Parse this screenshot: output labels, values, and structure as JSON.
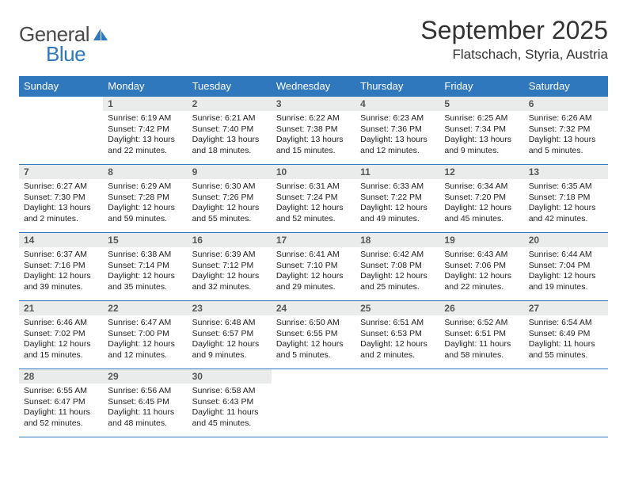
{
  "logo": {
    "word1": "General",
    "word2": "Blue"
  },
  "header": {
    "month_title": "September 2025",
    "location": "Flatschach, Styria, Austria"
  },
  "columns": [
    "Sunday",
    "Monday",
    "Tuesday",
    "Wednesday",
    "Thursday",
    "Friday",
    "Saturday"
  ],
  "colors": {
    "header_bg": "#2f78bd",
    "header_text": "#ffffff",
    "daynum_bg": "#e9eceb",
    "daynum_text": "#565656",
    "rule": "#2f78bd",
    "body_text": "#222222",
    "page_bg": "#ffffff",
    "logo_gray": "#4a4a4a",
    "logo_blue": "#2f78bd"
  },
  "rows": [
    [
      {
        "empty": true
      },
      {
        "num": "1",
        "sunrise": "Sunrise: 6:19 AM",
        "sunset": "Sunset: 7:42 PM",
        "daylight": "Daylight: 13 hours and 22 minutes."
      },
      {
        "num": "2",
        "sunrise": "Sunrise: 6:21 AM",
        "sunset": "Sunset: 7:40 PM",
        "daylight": "Daylight: 13 hours and 18 minutes."
      },
      {
        "num": "3",
        "sunrise": "Sunrise: 6:22 AM",
        "sunset": "Sunset: 7:38 PM",
        "daylight": "Daylight: 13 hours and 15 minutes."
      },
      {
        "num": "4",
        "sunrise": "Sunrise: 6:23 AM",
        "sunset": "Sunset: 7:36 PM",
        "daylight": "Daylight: 13 hours and 12 minutes."
      },
      {
        "num": "5",
        "sunrise": "Sunrise: 6:25 AM",
        "sunset": "Sunset: 7:34 PM",
        "daylight": "Daylight: 13 hours and 9 minutes."
      },
      {
        "num": "6",
        "sunrise": "Sunrise: 6:26 AM",
        "sunset": "Sunset: 7:32 PM",
        "daylight": "Daylight: 13 hours and 5 minutes."
      }
    ],
    [
      {
        "num": "7",
        "sunrise": "Sunrise: 6:27 AM",
        "sunset": "Sunset: 7:30 PM",
        "daylight": "Daylight: 13 hours and 2 minutes."
      },
      {
        "num": "8",
        "sunrise": "Sunrise: 6:29 AM",
        "sunset": "Sunset: 7:28 PM",
        "daylight": "Daylight: 12 hours and 59 minutes."
      },
      {
        "num": "9",
        "sunrise": "Sunrise: 6:30 AM",
        "sunset": "Sunset: 7:26 PM",
        "daylight": "Daylight: 12 hours and 55 minutes."
      },
      {
        "num": "10",
        "sunrise": "Sunrise: 6:31 AM",
        "sunset": "Sunset: 7:24 PM",
        "daylight": "Daylight: 12 hours and 52 minutes."
      },
      {
        "num": "11",
        "sunrise": "Sunrise: 6:33 AM",
        "sunset": "Sunset: 7:22 PM",
        "daylight": "Daylight: 12 hours and 49 minutes."
      },
      {
        "num": "12",
        "sunrise": "Sunrise: 6:34 AM",
        "sunset": "Sunset: 7:20 PM",
        "daylight": "Daylight: 12 hours and 45 minutes."
      },
      {
        "num": "13",
        "sunrise": "Sunrise: 6:35 AM",
        "sunset": "Sunset: 7:18 PM",
        "daylight": "Daylight: 12 hours and 42 minutes."
      }
    ],
    [
      {
        "num": "14",
        "sunrise": "Sunrise: 6:37 AM",
        "sunset": "Sunset: 7:16 PM",
        "daylight": "Daylight: 12 hours and 39 minutes."
      },
      {
        "num": "15",
        "sunrise": "Sunrise: 6:38 AM",
        "sunset": "Sunset: 7:14 PM",
        "daylight": "Daylight: 12 hours and 35 minutes."
      },
      {
        "num": "16",
        "sunrise": "Sunrise: 6:39 AM",
        "sunset": "Sunset: 7:12 PM",
        "daylight": "Daylight: 12 hours and 32 minutes."
      },
      {
        "num": "17",
        "sunrise": "Sunrise: 6:41 AM",
        "sunset": "Sunset: 7:10 PM",
        "daylight": "Daylight: 12 hours and 29 minutes."
      },
      {
        "num": "18",
        "sunrise": "Sunrise: 6:42 AM",
        "sunset": "Sunset: 7:08 PM",
        "daylight": "Daylight: 12 hours and 25 minutes."
      },
      {
        "num": "19",
        "sunrise": "Sunrise: 6:43 AM",
        "sunset": "Sunset: 7:06 PM",
        "daylight": "Daylight: 12 hours and 22 minutes."
      },
      {
        "num": "20",
        "sunrise": "Sunrise: 6:44 AM",
        "sunset": "Sunset: 7:04 PM",
        "daylight": "Daylight: 12 hours and 19 minutes."
      }
    ],
    [
      {
        "num": "21",
        "sunrise": "Sunrise: 6:46 AM",
        "sunset": "Sunset: 7:02 PM",
        "daylight": "Daylight: 12 hours and 15 minutes."
      },
      {
        "num": "22",
        "sunrise": "Sunrise: 6:47 AM",
        "sunset": "Sunset: 7:00 PM",
        "daylight": "Daylight: 12 hours and 12 minutes."
      },
      {
        "num": "23",
        "sunrise": "Sunrise: 6:48 AM",
        "sunset": "Sunset: 6:57 PM",
        "daylight": "Daylight: 12 hours and 9 minutes."
      },
      {
        "num": "24",
        "sunrise": "Sunrise: 6:50 AM",
        "sunset": "Sunset: 6:55 PM",
        "daylight": "Daylight: 12 hours and 5 minutes."
      },
      {
        "num": "25",
        "sunrise": "Sunrise: 6:51 AM",
        "sunset": "Sunset: 6:53 PM",
        "daylight": "Daylight: 12 hours and 2 minutes."
      },
      {
        "num": "26",
        "sunrise": "Sunrise: 6:52 AM",
        "sunset": "Sunset: 6:51 PM",
        "daylight": "Daylight: 11 hours and 58 minutes."
      },
      {
        "num": "27",
        "sunrise": "Sunrise: 6:54 AM",
        "sunset": "Sunset: 6:49 PM",
        "daylight": "Daylight: 11 hours and 55 minutes."
      }
    ],
    [
      {
        "num": "28",
        "sunrise": "Sunrise: 6:55 AM",
        "sunset": "Sunset: 6:47 PM",
        "daylight": "Daylight: 11 hours and 52 minutes."
      },
      {
        "num": "29",
        "sunrise": "Sunrise: 6:56 AM",
        "sunset": "Sunset: 6:45 PM",
        "daylight": "Daylight: 11 hours and 48 minutes."
      },
      {
        "num": "30",
        "sunrise": "Sunrise: 6:58 AM",
        "sunset": "Sunset: 6:43 PM",
        "daylight": "Daylight: 11 hours and 45 minutes."
      },
      {
        "empty": true
      },
      {
        "empty": true
      },
      {
        "empty": true
      },
      {
        "empty": true
      }
    ]
  ]
}
